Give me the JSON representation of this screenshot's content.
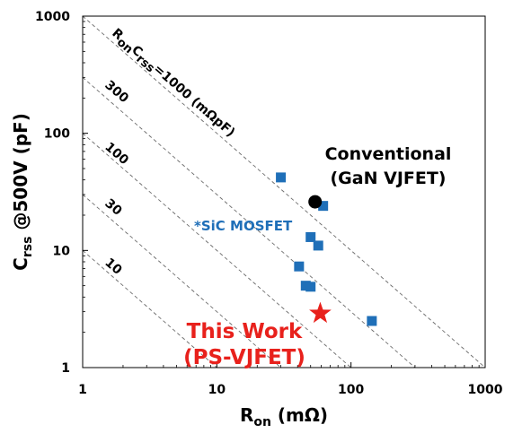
{
  "chart_data": {
    "type": "scatter",
    "x_scale": "log",
    "y_scale": "log",
    "xlim": [
      1,
      1000
    ],
    "ylim": [
      1,
      1000
    ],
    "x_ticks": [
      "1",
      "10",
      "100",
      "1000"
    ],
    "y_ticks": [
      "1",
      "10",
      "100",
      "1000"
    ],
    "xlabel": {
      "main": "R",
      "sub": "on",
      "unit": " (mΩ)"
    },
    "ylabel": {
      "main": "C",
      "sub": "rss",
      "unit": " @500V (pF)"
    },
    "iso_lines": [
      {
        "product": 1000,
        "label_parts": [
          "R",
          "on",
          "C",
          "rss",
          "=1000 (mΩpF)"
        ]
      },
      {
        "product": 300,
        "label": "300"
      },
      {
        "product": 100,
        "label": "100"
      },
      {
        "product": 30,
        "label": "30"
      },
      {
        "product": 10,
        "label": "10"
      }
    ],
    "series": [
      {
        "name": "*SiC MOSFET",
        "marker": "square",
        "color": "#1f6fb8",
        "points": [
          {
            "x": 30,
            "y": 42
          },
          {
            "x": 62,
            "y": 24
          },
          {
            "x": 50,
            "y": 13
          },
          {
            "x": 57,
            "y": 11
          },
          {
            "x": 41,
            "y": 7.3
          },
          {
            "x": 46,
            "y": 5.0
          },
          {
            "x": 50,
            "y": 4.9
          },
          {
            "x": 143,
            "y": 2.5
          }
        ]
      },
      {
        "name": "Conventional (GaN VJFET)",
        "marker": "circle",
        "color": "#000000",
        "points": [
          {
            "x": 54,
            "y": 26
          }
        ]
      },
      {
        "name": "This Work (PS-VJFET)",
        "marker": "star",
        "color": "#e8211c",
        "points": [
          {
            "x": 59,
            "y": 2.9
          }
        ]
      }
    ],
    "annotations": {
      "conventional": {
        "line1": "Conventional",
        "line2": "(GaN VJFET)",
        "color": "#000000"
      },
      "sic": {
        "text": "*SiC MOSFET",
        "color": "#1f6fb8"
      },
      "this_work": {
        "line1": "This Work",
        "line2": "(PS-VJFET)",
        "color": "#e8211c"
      }
    },
    "grid": false,
    "legend": "none"
  }
}
